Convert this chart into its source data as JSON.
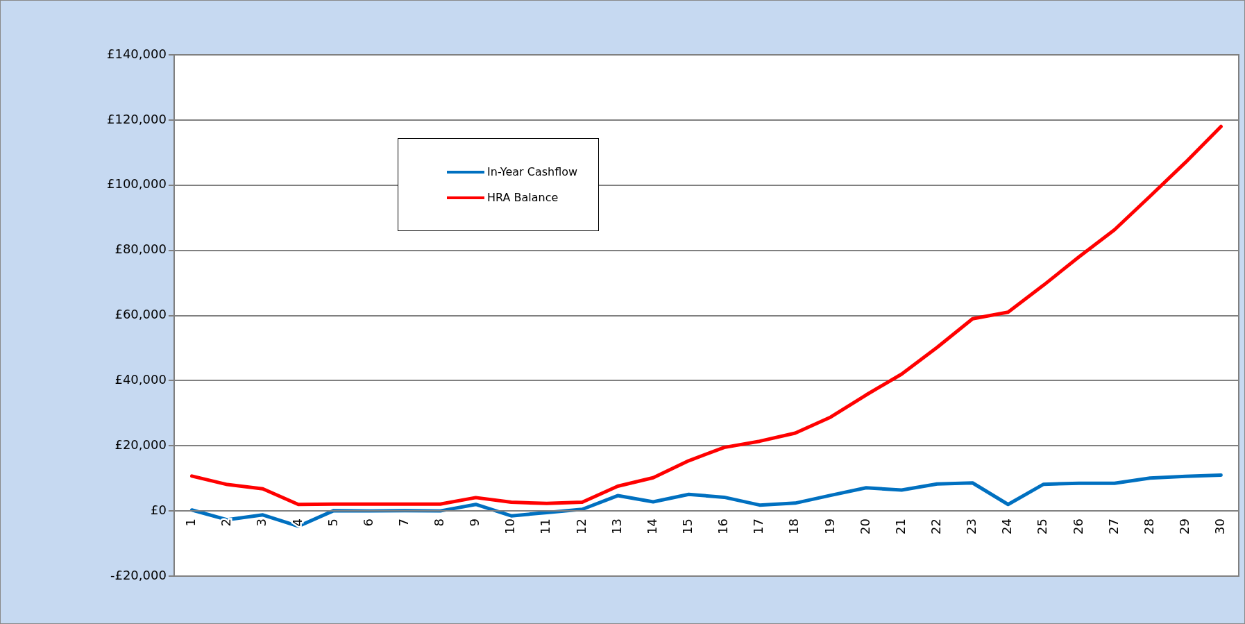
{
  "chart_data": {
    "type": "line",
    "categories": [
      "1",
      "2",
      "3",
      "4",
      "5",
      "6",
      "7",
      "8",
      "9",
      "10",
      "11",
      "12",
      "13",
      "14",
      "15",
      "16",
      "17",
      "18",
      "19",
      "20",
      "21",
      "22",
      "23",
      "24",
      "25",
      "26",
      "27",
      "28",
      "29",
      "30"
    ],
    "series": [
      {
        "name": "In-Year Cashflow",
        "color": "#0070c0",
        "values": [
          300,
          -2700,
          -1200,
          -4700,
          100,
          0,
          100,
          0,
          2000,
          -1500,
          -500,
          500,
          4700,
          2800,
          5100,
          4200,
          1800,
          2400,
          4800,
          7100,
          6400,
          8300,
          8600,
          2000,
          8200,
          8500,
          8500,
          10100,
          10600,
          11000
        ]
      },
      {
        "name": "HRA Balance",
        "color": "#ff0000",
        "values": [
          10700,
          8100,
          6800,
          2000,
          2100,
          2100,
          2100,
          2100,
          4100,
          2700,
          2300,
          2700,
          7600,
          10200,
          15400,
          19500,
          21400,
          23900,
          28800,
          35600,
          42000,
          50200,
          59000,
          61000,
          69300,
          78000,
          86300,
          96600,
          107000,
          118000
        ]
      }
    ],
    "ylim": [
      -20000,
      140000
    ],
    "yticks": [
      {
        "value": -20000,
        "label": "-£20,000"
      },
      {
        "value": 0,
        "label": "£0"
      },
      {
        "value": 20000,
        "label": "£20,000"
      },
      {
        "value": 40000,
        "label": "£40,000"
      },
      {
        "value": 60000,
        "label": "£60,000"
      },
      {
        "value": 80000,
        "label": "£80,000"
      },
      {
        "value": 100000,
        "label": "£100,000"
      },
      {
        "value": 120000,
        "label": "£120,000"
      },
      {
        "value": 140000,
        "label": "£140,000"
      }
    ],
    "grid": "y",
    "legend": "top left",
    "marker": "none",
    "line_style": "solid"
  }
}
